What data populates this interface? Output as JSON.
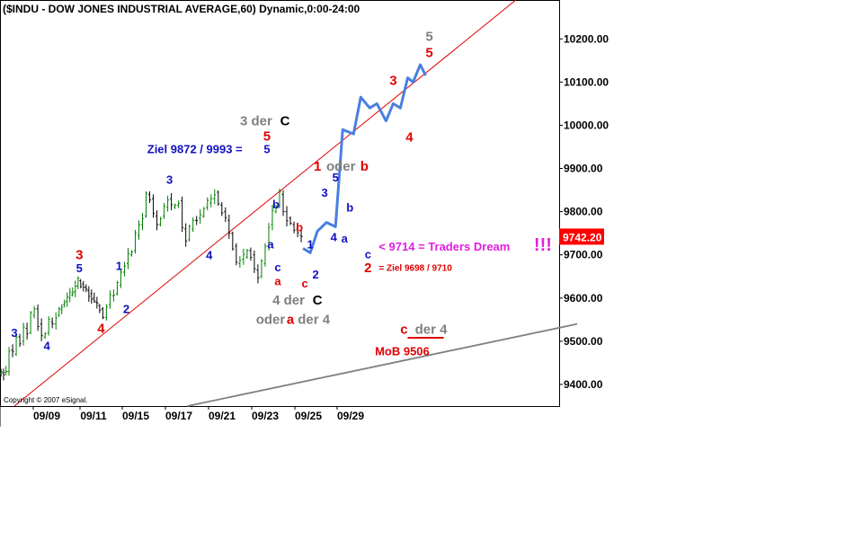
{
  "chart_data": {
    "type": "line",
    "title": "($INDU - DOW JONES INDUSTRIAL AVERAGE,60) Dynamic,0:00-24:00",
    "copyright": "Copyright © 2007 eSignal.",
    "ylim": [
      9350,
      10290
    ],
    "y_ticks": [
      {
        "value": 9400,
        "label": "9400.00"
      },
      {
        "value": 9500,
        "label": "9500.00"
      },
      {
        "value": 9600,
        "label": "9600.00"
      },
      {
        "value": 9700,
        "label": "9700.00"
      },
      {
        "value": 9800,
        "label": "9800.00"
      },
      {
        "value": 9900,
        "label": "9900.00"
      },
      {
        "value": 10000,
        "label": "10000.00"
      },
      {
        "value": 10100,
        "label": "10100.00"
      },
      {
        "value": 10200,
        "label": "10200.00"
      }
    ],
    "x_ticks": [
      "09/09",
      "09/11",
      "09/15",
      "09/17",
      "09/21",
      "09/23",
      "09/25",
      "09/29"
    ],
    "last_price": {
      "value": 9742.2,
      "label": "9742.20",
      "color": "#ff0000"
    },
    "colors": {
      "up": "#008000",
      "down": "#000000",
      "projection": "#4a7fe0",
      "red": "#e00000",
      "blue": "#1010c0",
      "gray": "#808080",
      "magenta": "#e020e0"
    },
    "price_path": [
      [
        0,
        9425
      ],
      [
        4,
        9430
      ],
      [
        6,
        9480
      ],
      [
        8,
        9470
      ],
      [
        10,
        9510
      ],
      [
        12,
        9500
      ],
      [
        14,
        9530
      ],
      [
        16,
        9520
      ],
      [
        18,
        9560
      ],
      [
        20,
        9575
      ],
      [
        22,
        9540
      ],
      [
        24,
        9510
      ],
      [
        26,
        9520
      ],
      [
        28,
        9545
      ],
      [
        30,
        9540
      ],
      [
        32,
        9560
      ],
      [
        35,
        9585
      ],
      [
        38,
        9600
      ],
      [
        41,
        9615
      ],
      [
        44,
        9640
      ],
      [
        47,
        9625
      ],
      [
        50,
        9610
      ],
      [
        53,
        9590
      ],
      [
        56,
        9575
      ],
      [
        58,
        9555
      ],
      [
        60,
        9585
      ],
      [
        62,
        9605
      ],
      [
        64,
        9610
      ],
      [
        66,
        9630
      ],
      [
        68,
        9660
      ],
      [
        70,
        9680
      ],
      [
        72,
        9700
      ],
      [
        74,
        9710
      ],
      [
        76,
        9745
      ],
      [
        78,
        9770
      ],
      [
        80,
        9790
      ],
      [
        82,
        9840
      ],
      [
        84,
        9830
      ],
      [
        86,
        9790
      ],
      [
        88,
        9770
      ],
      [
        90,
        9790
      ],
      [
        92,
        9810
      ],
      [
        94,
        9830
      ],
      [
        96,
        9810
      ],
      [
        98,
        9815
      ],
      [
        100,
        9825
      ],
      [
        102,
        9760
      ],
      [
        104,
        9735
      ],
      [
        106,
        9760
      ],
      [
        108,
        9780
      ],
      [
        110,
        9785
      ],
      [
        112,
        9790
      ],
      [
        114,
        9810
      ],
      [
        116,
        9820
      ],
      [
        118,
        9830
      ],
      [
        120,
        9845
      ],
      [
        122,
        9815
      ],
      [
        124,
        9800
      ],
      [
        126,
        9780
      ],
      [
        128,
        9750
      ],
      [
        130,
        9720
      ],
      [
        132,
        9680
      ],
      [
        134,
        9690
      ],
      [
        136,
        9695
      ],
      [
        138,
        9710
      ],
      [
        140,
        9700
      ],
      [
        142,
        9665
      ],
      [
        144,
        9650
      ],
      [
        146,
        9680
      ],
      [
        148,
        9720
      ],
      [
        150,
        9770
      ],
      [
        152,
        9800
      ],
      [
        154,
        9815
      ],
      [
        156,
        9840
      ],
      [
        158,
        9800
      ],
      [
        160,
        9785
      ],
      [
        162,
        9770
      ],
      [
        164,
        9760
      ],
      [
        166,
        9745
      ],
      [
        168,
        9742
      ]
    ],
    "projection": [
      [
        9742,
        9715
      ],
      [
        9770,
        9705
      ],
      [
        9790,
        9755
      ],
      [
        9800,
        9775
      ],
      [
        9810,
        9765
      ],
      [
        9830,
        9990
      ],
      [
        9850,
        9980
      ],
      [
        9880,
        10065
      ],
      [
        9900,
        10040
      ],
      [
        9915,
        10050
      ],
      [
        9930,
        10010
      ],
      [
        9950,
        10050
      ],
      [
        9970,
        10040
      ],
      [
        9990,
        10110
      ],
      [
        10005,
        10100
      ],
      [
        10020,
        10140
      ],
      [
        10050,
        10115
      ]
    ],
    "projection_x": [
      168,
      172,
      176,
      181,
      186,
      190,
      196,
      200,
      205,
      209,
      214,
      218,
      222,
      226,
      229,
      233,
      236
    ],
    "trendlines": [
      {
        "name": "red channel",
        "color": "#e00000",
        "from": [
          8,
          9350
        ],
        "to": [
          286,
          10290
        ]
      },
      {
        "name": "gray support",
        "color": "#808080",
        "from": [
          104,
          9350
        ],
        "to": [
          320,
          9540
        ]
      }
    ],
    "annotations": [
      {
        "text": "3",
        "color": "#1010c0",
        "x": 8,
        "y": 9510,
        "cls": "t-wave"
      },
      {
        "text": "4",
        "color": "#1010c0",
        "x": 26,
        "y": 9480,
        "cls": "t-wave"
      },
      {
        "text": "3",
        "color": "#e00000",
        "x": 44,
        "y": 9690,
        "cls": "t-big"
      },
      {
        "text": "5",
        "color": "#1010c0",
        "x": 44,
        "y": 9660,
        "cls": "t-wave"
      },
      {
        "text": "4",
        "color": "#e00000",
        "x": 56,
        "y": 9520,
        "cls": "t-big"
      },
      {
        "text": "1",
        "color": "#1010c0",
        "x": 66,
        "y": 9665,
        "cls": "t-wave"
      },
      {
        "text": "2",
        "color": "#1010c0",
        "x": 70,
        "y": 9565,
        "cls": "t-wave"
      },
      {
        "text": "3",
        "color": "#1010c0",
        "x": 94,
        "y": 9865,
        "cls": "t-wave"
      },
      {
        "text": "4",
        "color": "#1010c0",
        "x": 116,
        "y": 9690,
        "cls": "t-wave"
      },
      {
        "text": "Ziel 9872 / 9993 =",
        "color": "#1010c0",
        "x": 108,
        "y": 9935,
        "cls": "t-mid",
        "anchor": "middle"
      },
      {
        "text": "5",
        "color": "#1010c0",
        "x": 148,
        "y": 9935,
        "cls": "t-wave"
      },
      {
        "text": "5",
        "color": "#e00000",
        "x": 148,
        "y": 9965,
        "cls": "t-big"
      },
      {
        "text": "3 der",
        "color": "#808080",
        "x": 142,
        "y": 10000,
        "cls": "t-big"
      },
      {
        "text": "C",
        "color": "#000000",
        "x": 158,
        "y": 10000,
        "cls": "t-big"
      },
      {
        "text": "b",
        "color": "#1010c0",
        "x": 153,
        "y": 9808,
        "cls": "t-wave"
      },
      {
        "text": "a",
        "color": "#1010c0",
        "x": 150,
        "y": 9715,
        "cls": "t-wave"
      },
      {
        "text": "c",
        "color": "#1010c0",
        "x": 154,
        "y": 9662,
        "cls": "t-wave"
      },
      {
        "text": "a",
        "color": "#e00000",
        "x": 154,
        "y": 9630,
        "cls": "t-wave"
      },
      {
        "text": "b",
        "color": "#e00000",
        "x": 166,
        "y": 9755,
        "cls": "t-wave"
      },
      {
        "text": "1",
        "color": "#1010c0",
        "x": 172,
        "y": 9715,
        "cls": "t-wave"
      },
      {
        "text": "2",
        "color": "#1010c0",
        "x": 175,
        "y": 9645,
        "cls": "t-wave"
      },
      {
        "text": "c",
        "color": "#e00000",
        "x": 169,
        "y": 9625,
        "cls": "t-wave"
      },
      {
        "text": "4 der",
        "color": "#808080",
        "x": 160,
        "y": 9585,
        "cls": "t-big"
      },
      {
        "text": "C",
        "color": "#000000",
        "x": 176,
        "y": 9585,
        "cls": "t-big"
      },
      {
        "text": "oder",
        "color": "#808080",
        "x": 150,
        "y": 9540,
        "cls": "t-big"
      },
      {
        "text": "a",
        "color": "#e00000",
        "x": 161,
        "y": 9540,
        "cls": "t-big"
      },
      {
        "text": "der 4",
        "color": "#808080",
        "x": 174,
        "y": 9540,
        "cls": "t-big"
      },
      {
        "text": "1",
        "color": "#e00000",
        "x": 176,
        "y": 9895,
        "cls": "t-big"
      },
      {
        "text": "oder",
        "color": "#808080",
        "x": 189,
        "y": 9895,
        "cls": "t-big"
      },
      {
        "text": "b",
        "color": "#e00000",
        "x": 202,
        "y": 9895,
        "cls": "t-big"
      },
      {
        "text": "5",
        "color": "#1010c0",
        "x": 186,
        "y": 9870,
        "cls": "t-wave"
      },
      {
        "text": "3",
        "color": "#1010c0",
        "x": 180,
        "y": 9835,
        "cls": "t-wave"
      },
      {
        "text": "b",
        "color": "#1010c0",
        "x": 194,
        "y": 9800,
        "cls": "t-wave"
      },
      {
        "text": "4",
        "color": "#1010c0",
        "x": 185,
        "y": 9732,
        "cls": "t-wave"
      },
      {
        "text": "a",
        "color": "#1010c0",
        "x": 191,
        "y": 9728,
        "cls": "t-wave"
      },
      {
        "text": "c",
        "color": "#1010c0",
        "x": 204,
        "y": 9692,
        "cls": "t-wave"
      },
      {
        "text": "2",
        "color": "#e00000",
        "x": 204,
        "y": 9660,
        "cls": "t-big"
      },
      {
        "text": "= Ziel 9698 / 9710",
        "color": "#e00000",
        "x": 210,
        "y": 9663,
        "cls": "t-small",
        "anchor": "start"
      },
      {
        "text": "< 9714 = Traders Dream",
        "color": "#e020e0",
        "x": 210,
        "y": 9710,
        "cls": "t-mid",
        "anchor": "start"
      },
      {
        "text": "!!!",
        "color": "#e020e0",
        "x": 296,
        "y": 9710,
        "cls": "t-bang",
        "anchor": "start"
      },
      {
        "text": "3",
        "color": "#e00000",
        "x": 218,
        "y": 10093,
        "cls": "t-big"
      },
      {
        "text": "4",
        "color": "#e00000",
        "x": 227,
        "y": 9962,
        "cls": "t-big"
      },
      {
        "text": "5",
        "color": "#e00000",
        "x": 238,
        "y": 10158,
        "cls": "t-big"
      },
      {
        "text": "5",
        "color": "#808080",
        "x": 238,
        "y": 10195,
        "cls": "t-big"
      },
      {
        "text": "c",
        "color": "#e00000",
        "x": 224,
        "y": 9517,
        "cls": "t-big"
      },
      {
        "text": "der 4",
        "color": "#808080",
        "x": 239,
        "y": 9517,
        "cls": "t-big"
      },
      {
        "text": "MoB 9506",
        "color": "#e00000",
        "x": 223,
        "y": 9467,
        "cls": "t-mid"
      }
    ]
  }
}
